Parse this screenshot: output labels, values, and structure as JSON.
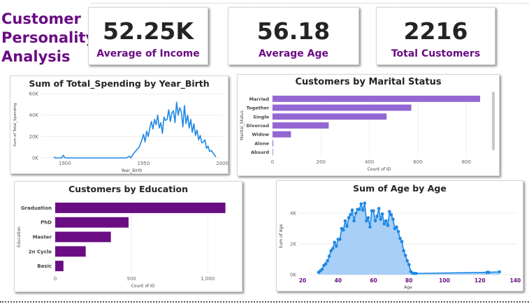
{
  "title": "Customer Personality Analysis",
  "kpis": [
    {
      "value": "52.25K",
      "label": "Average of Income"
    },
    {
      "value": "56.18",
      "label": "Average Age"
    },
    {
      "value": "2216",
      "label": "Total Customers"
    }
  ],
  "colors": {
    "title": "#6a0d83",
    "line": "#1e88e5",
    "marital_bar": "#9467d2",
    "education_bar": "#6a0d83",
    "area_fill": "#9fcaf6"
  },
  "chart_data": [
    {
      "id": "spending",
      "type": "line",
      "title": "Sum of Total_Spending by Year_Birth",
      "xlabel": "Year_Birth",
      "ylabel": "Sum of Total_Spending",
      "xlim": [
        1885,
        2000
      ],
      "ylim": [
        0,
        62000
      ],
      "xticks": [
        1900,
        1950,
        2000
      ],
      "yticks": [
        0,
        20000,
        40000,
        60000
      ],
      "ytick_labels": [
        "0K",
        "20K",
        "40K",
        "60K"
      ],
      "x": [
        1893,
        1899,
        1900,
        1940,
        1941,
        1943,
        1944,
        1945,
        1946,
        1947,
        1948,
        1949,
        1950,
        1951,
        1952,
        1953,
        1954,
        1955,
        1956,
        1957,
        1958,
        1959,
        1960,
        1961,
        1962,
        1963,
        1964,
        1965,
        1966,
        1967,
        1968,
        1969,
        1970,
        1971,
        1972,
        1973,
        1974,
        1975,
        1976,
        1977,
        1978,
        1979,
        1980,
        1981,
        1982,
        1983,
        1984,
        1985,
        1986,
        1987,
        1988,
        1989,
        1990,
        1991,
        1992,
        1993,
        1994,
        1995,
        1996
      ],
      "y": [
        1000,
        2500,
        200,
        800,
        1500,
        2800,
        4500,
        6500,
        8000,
        9500,
        13000,
        17000,
        22000,
        15000,
        25000,
        20000,
        28000,
        34000,
        27000,
        36000,
        31000,
        40000,
        28000,
        33000,
        23000,
        38000,
        35000,
        36000,
        45000,
        34000,
        42000,
        44000,
        33000,
        52000,
        40000,
        47000,
        43000,
        29000,
        49000,
        32000,
        40000,
        28000,
        36000,
        24000,
        32000,
        21000,
        26000,
        17000,
        21000,
        14000,
        15000,
        17000,
        9000,
        11000,
        6000,
        7000,
        5000,
        3000,
        900
      ]
    },
    {
      "id": "marital",
      "type": "bar",
      "orientation": "horizontal",
      "title": "Customers by Marital Status",
      "xlabel": "Count of ID",
      "ylabel": "Marital_Status",
      "categories": [
        "Married",
        "Together",
        "Single",
        "Divorced",
        "Widow",
        "Alone",
        "Absurd"
      ],
      "values": [
        857,
        573,
        471,
        232,
        76,
        3,
        2
      ],
      "xlim": [
        0,
        880
      ],
      "xticks": [
        0,
        200,
        400,
        600,
        800
      ]
    },
    {
      "id": "education",
      "type": "bar",
      "orientation": "horizontal",
      "title": "Customers by Education",
      "xlabel": "Count of ID",
      "ylabel": "Education",
      "categories": [
        "Graduation",
        "PhD",
        "Master",
        "2n Cycle",
        "Basic"
      ],
      "values": [
        1116,
        481,
        365,
        200,
        54
      ],
      "xlim": [
        0,
        1150
      ],
      "xticks": [
        0,
        500,
        1000
      ],
      "xtick_labels": [
        "0",
        "500",
        "1,000"
      ]
    },
    {
      "id": "age",
      "type": "area",
      "title": "Sum of Age by Age",
      "xlabel": "Age",
      "ylabel": "Sum of Age",
      "xlim": [
        18,
        141
      ],
      "ylim": [
        0,
        5000
      ],
      "xticks": [
        20,
        40,
        60,
        80,
        100,
        120,
        140
      ],
      "yticks": [
        0,
        2000,
        4000
      ],
      "ytick_labels": [
        "0K",
        "2K",
        "4K"
      ],
      "x": [
        29,
        30,
        31,
        32,
        33,
        34,
        35,
        36,
        37,
        38,
        39,
        40,
        41,
        42,
        43,
        44,
        45,
        46,
        47,
        48,
        49,
        50,
        51,
        52,
        53,
        54,
        55,
        56,
        57,
        58,
        59,
        60,
        61,
        62,
        63,
        64,
        65,
        66,
        67,
        68,
        69,
        70,
        71,
        72,
        73,
        74,
        75,
        76,
        77,
        78,
        79,
        80,
        81,
        82,
        83,
        84,
        124,
        125,
        131
      ],
      "y": [
        150,
        250,
        350,
        600,
        700,
        900,
        1200,
        1550,
        1700,
        2100,
        1850,
        2300,
        2300,
        3000,
        2900,
        3500,
        3150,
        3700,
        3900,
        4200,
        3500,
        4000,
        4250,
        4250,
        4600,
        4200,
        4650,
        3500,
        3700,
        3100,
        4150,
        4150,
        3500,
        3800,
        4300,
        3600,
        3950,
        3300,
        3500,
        3200,
        4100,
        3900,
        3600,
        3000,
        3100,
        2800,
        2350,
        2150,
        1550,
        1250,
        900,
        650,
        200,
        100,
        80,
        80,
        150,
        150,
        180
      ]
    }
  ]
}
